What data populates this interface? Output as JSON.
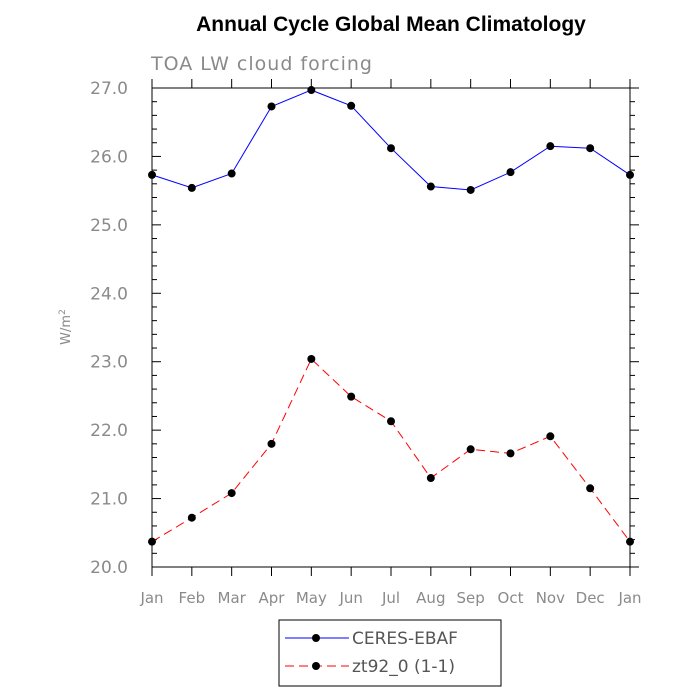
{
  "chart_data": {
    "type": "line",
    "title": "Annual Cycle Global Mean Climatology",
    "subtitle": "TOA LW cloud forcing",
    "ylabel": "W/m",
    "ylabel_superscript": "2",
    "ylim": [
      20.0,
      27.0
    ],
    "yticks": [
      "20.0",
      "21.0",
      "22.0",
      "23.0",
      "24.0",
      "25.0",
      "26.0",
      "27.0"
    ],
    "categories": [
      "Jan",
      "Feb",
      "Mar",
      "Apr",
      "May",
      "Jun",
      "Jul",
      "Aug",
      "Sep",
      "Oct",
      "Nov",
      "Dec",
      "Jan"
    ],
    "grid": false,
    "legend_position": "bottom",
    "series": [
      {
        "name": "CERES-EBAF",
        "color": "#0000ff",
        "dash": "solid",
        "values": [
          25.73,
          25.54,
          25.75,
          26.73,
          26.97,
          26.74,
          26.12,
          25.56,
          25.51,
          25.77,
          26.15,
          26.12,
          25.73
        ]
      },
      {
        "name": "zt92_0 (1-1)",
        "color": "#ff0000",
        "dash": "dashed",
        "values": [
          20.37,
          20.72,
          21.08,
          21.8,
          23.04,
          22.49,
          22.13,
          21.3,
          21.72,
          21.66,
          21.91,
          21.15,
          20.37
        ]
      }
    ]
  }
}
